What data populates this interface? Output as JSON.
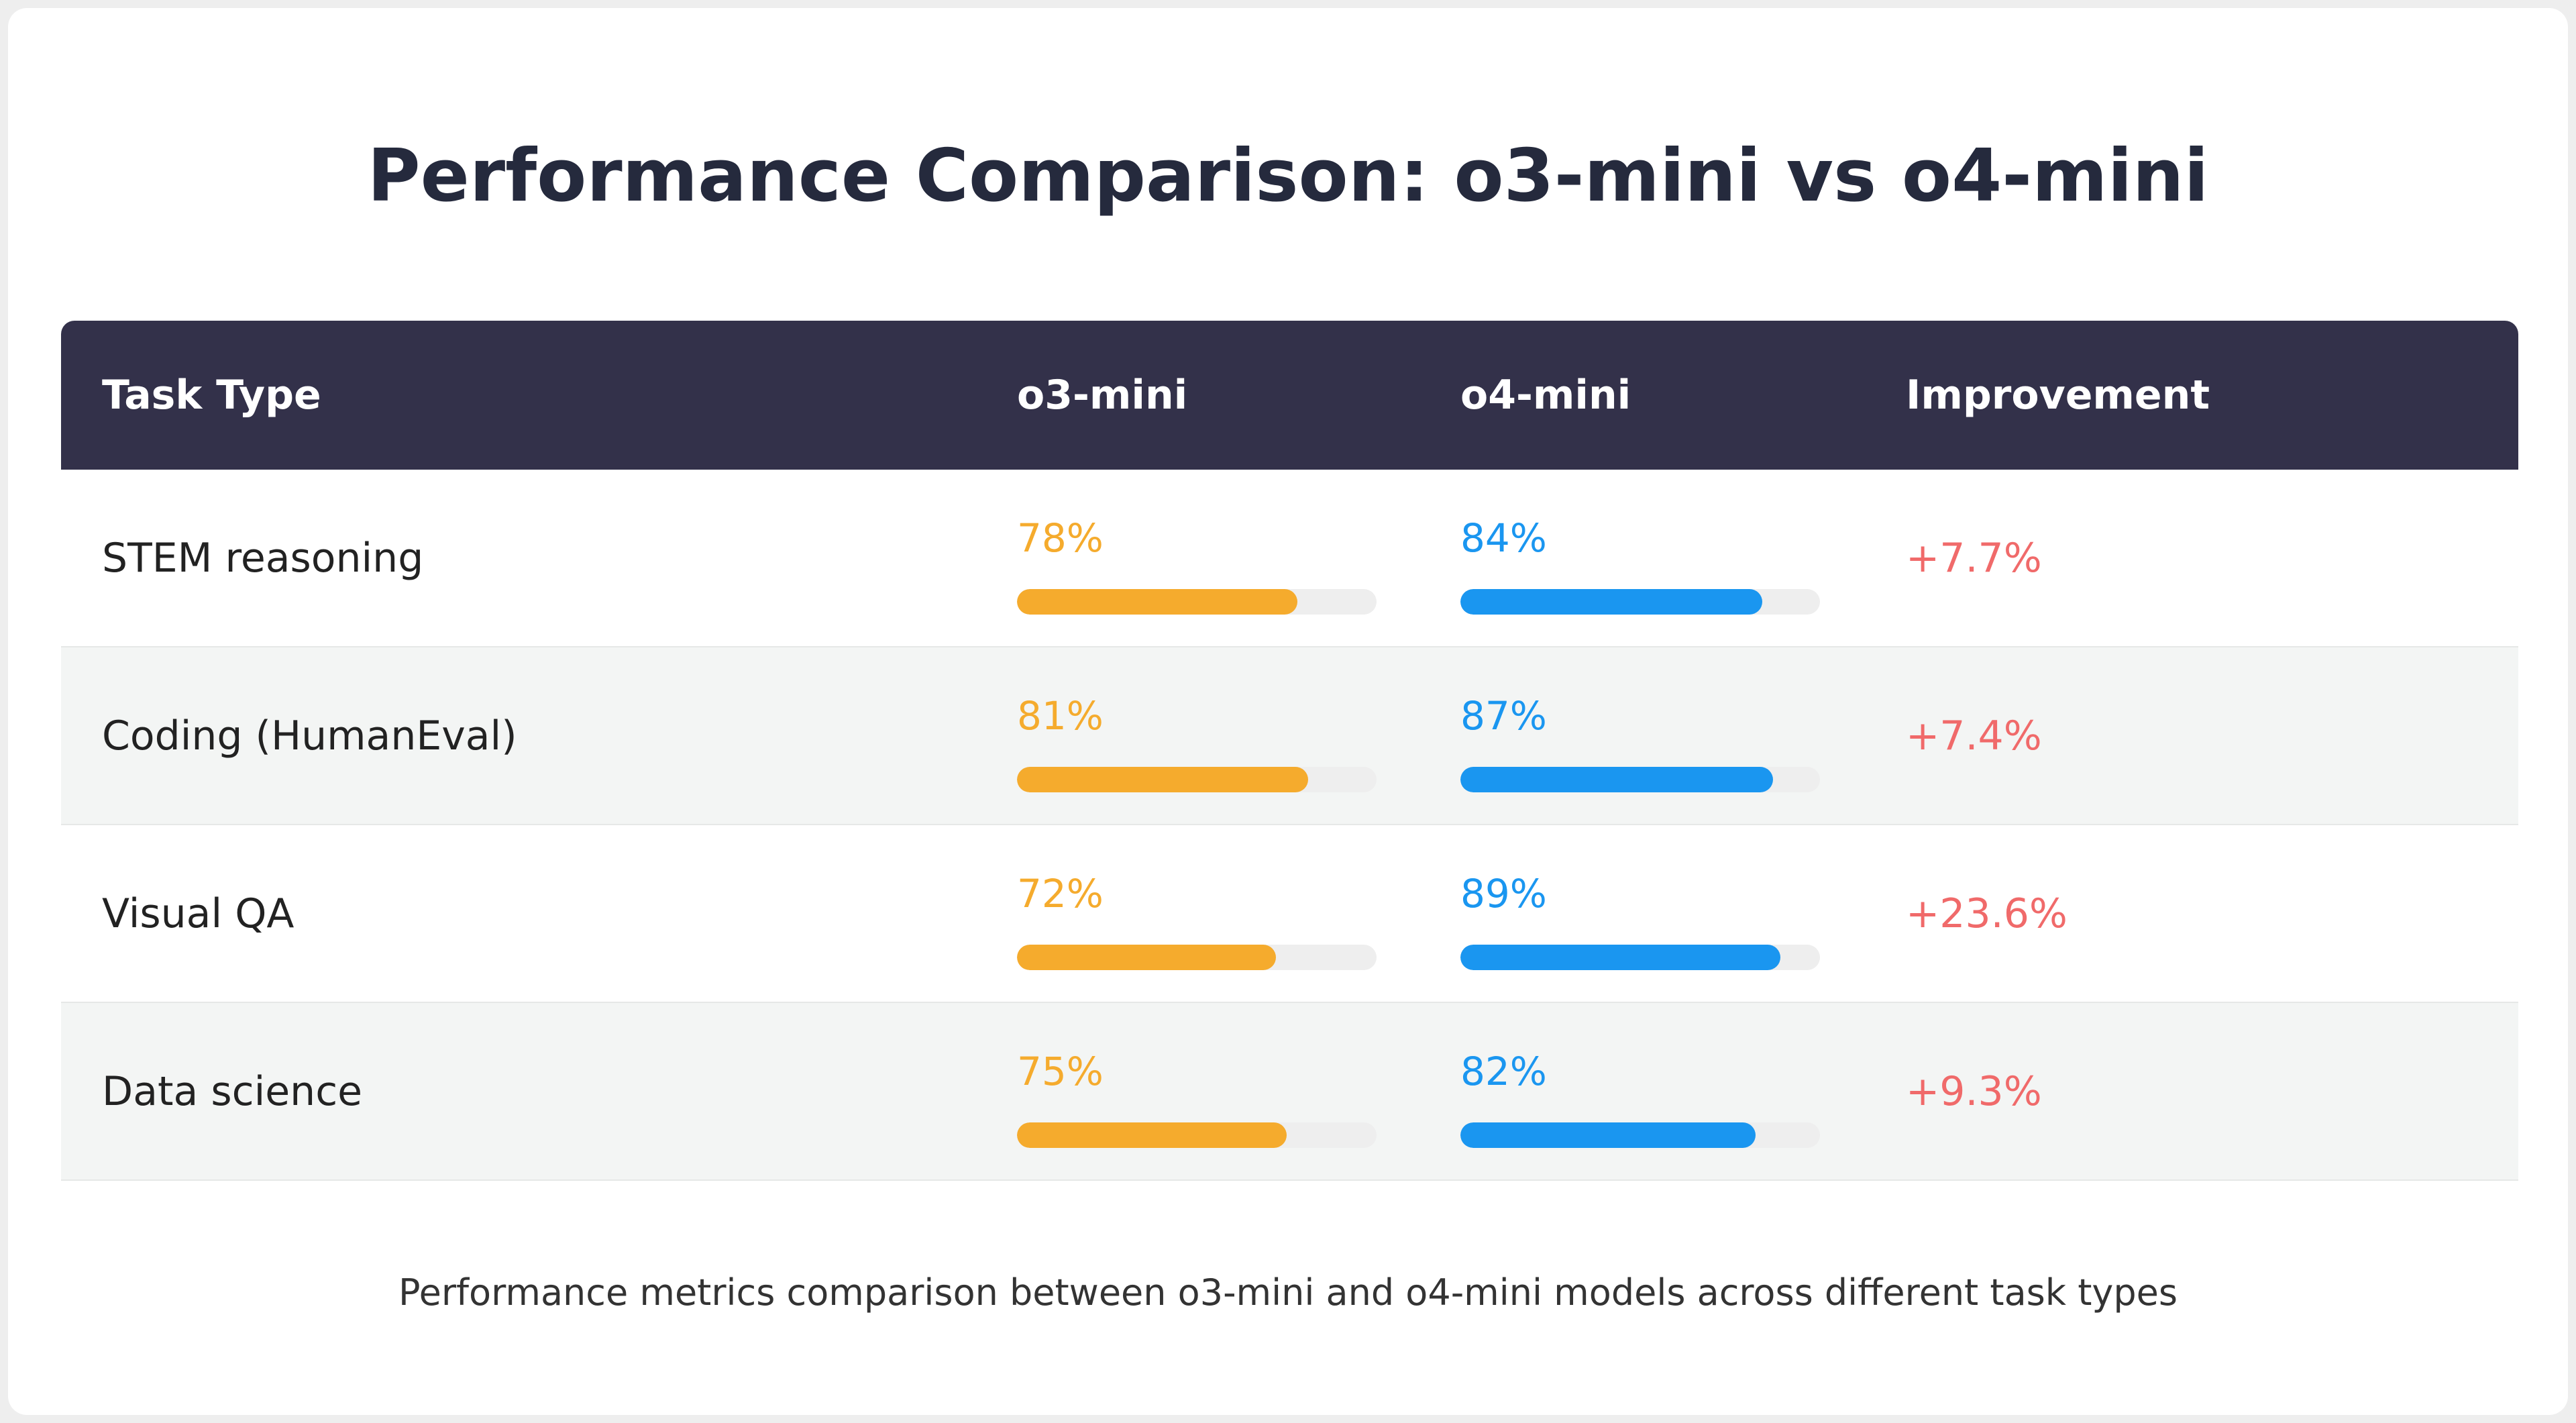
{
  "title": "Performance Comparison: o3-mini vs o4-mini",
  "table": {
    "columns": [
      "Task Type",
      "o3-mini",
      "o4-mini",
      "Improvement"
    ],
    "colors": [
      "#f5ab2d",
      "#1a96f0"
    ],
    "xlim": [
      0,
      100
    ],
    "rows": [
      {
        "task": "STEM reasoning",
        "values": [
          78,
          84
        ],
        "value_labels": [
          "78%",
          "84%"
        ],
        "improvement": "+7.7%"
      },
      {
        "task": "Coding (HumanEval)",
        "values": [
          81,
          87
        ],
        "value_labels": [
          "81%",
          "87%"
        ],
        "improvement": "+7.4%"
      },
      {
        "task": "Visual QA",
        "values": [
          72,
          89
        ],
        "value_labels": [
          "72%",
          "89%"
        ],
        "improvement": "+23.6%"
      },
      {
        "task": "Data science",
        "values": [
          75,
          82
        ],
        "value_labels": [
          "75%",
          "82%"
        ],
        "improvement": "+9.3%"
      }
    ]
  },
  "caption": "Performance metrics comparison between o3-mini and o4-mini models across different task types"
}
